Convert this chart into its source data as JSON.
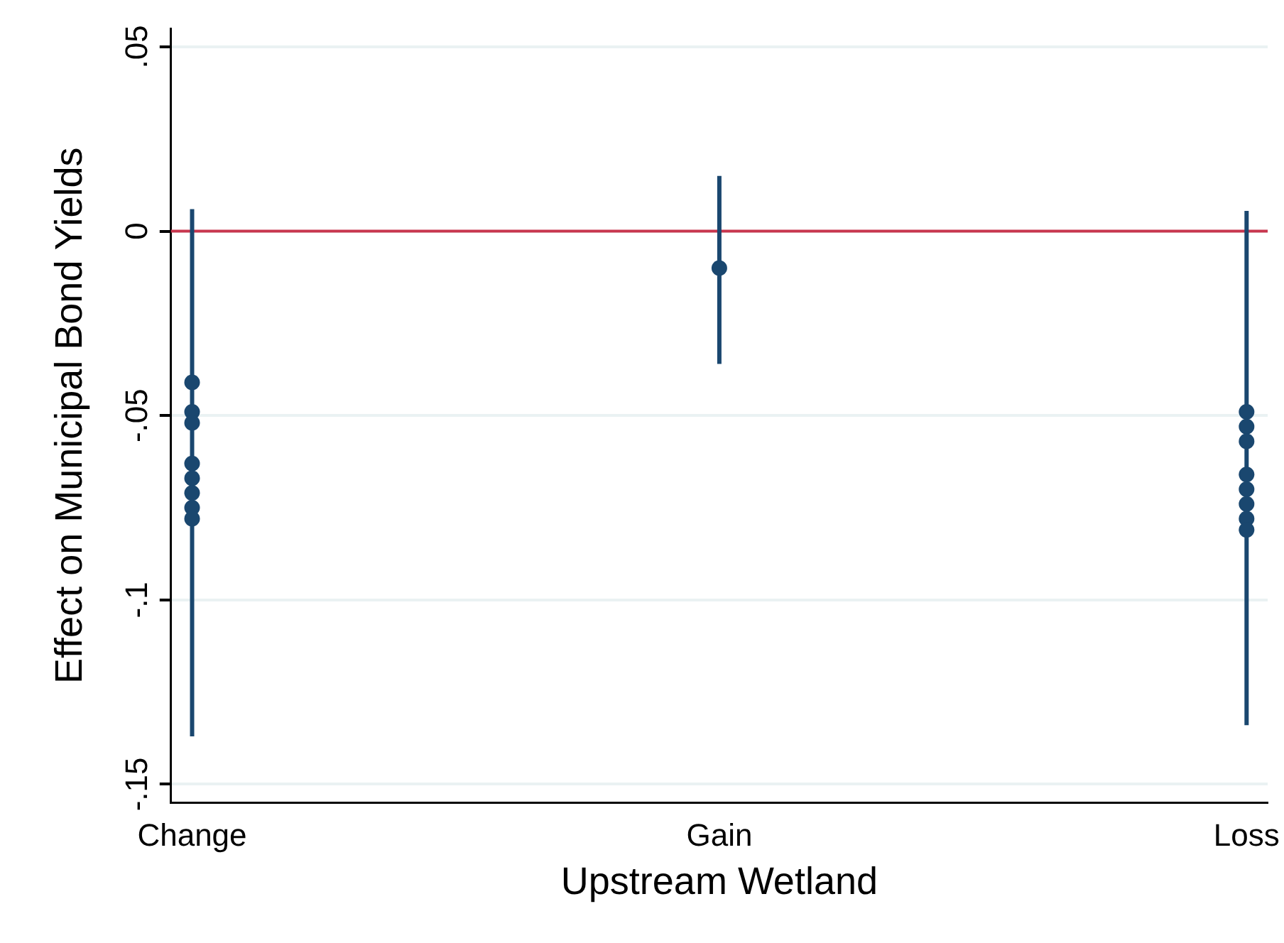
{
  "chart_data": {
    "type": "scatter",
    "xlabel": "Upstream Wetland",
    "ylabel": "Effect on Municipal Bond Yields",
    "categories": [
      "Change",
      "Gain",
      "Loss"
    ],
    "ylim": [
      -0.155,
      0.055
    ],
    "yticks": [
      {
        "value": -0.15,
        "label": "-.15"
      },
      {
        "value": -0.1,
        "label": "-.1"
      },
      {
        "value": -0.05,
        "label": "-.05"
      },
      0,
      {
        "value": 0.05,
        "label": ".05"
      }
    ],
    "grid": "y",
    "legend": false,
    "marker": "circle",
    "series": [
      {
        "color": "#1a476f",
        "x": [
          "Change",
          "Change",
          "Change",
          "Change",
          "Change",
          "Change",
          "Change",
          "Change"
        ],
        "values": [
          -0.041,
          -0.049,
          -0.052,
          -0.063,
          -0.067,
          -0.071,
          -0.075,
          -0.078
        ],
        "errors": [
          [
            -0.137,
            0.006
          ],
          null,
          null,
          null,
          null,
          null,
          null,
          null
        ]
      },
      {
        "color": "#1a476f",
        "x": [
          "Gain"
        ],
        "values": [
          -0.01
        ],
        "errors": [
          [
            -0.036,
            0.015
          ]
        ]
      },
      {
        "color": "#1a476f",
        "x": [
          "Loss",
          "Loss",
          "Loss",
          "Loss",
          "Loss",
          "Loss",
          "Loss",
          "Loss"
        ],
        "values": [
          -0.049,
          -0.053,
          -0.057,
          -0.066,
          -0.07,
          -0.074,
          -0.078,
          -0.081
        ],
        "errors": [
          [
            -0.134,
            0.0055
          ],
          null,
          null,
          null,
          null,
          null,
          null,
          null
        ]
      }
    ],
    "ref_lines": [
      {
        "axis": "y",
        "value": 0,
        "color": "#c8364e"
      }
    ]
  }
}
